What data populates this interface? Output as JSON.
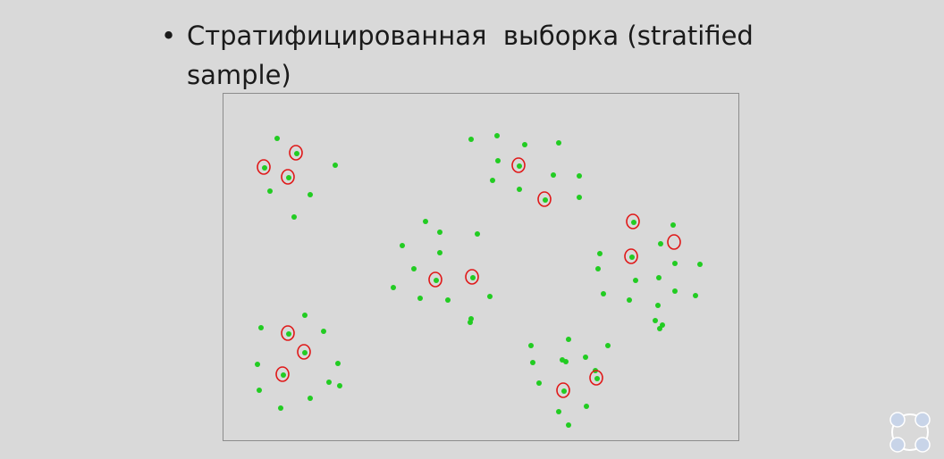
{
  "slide": {
    "bullet_symbol": "•",
    "bullet_text": "Стратифицированная  выборка (stratified\nsample)"
  },
  "colors": {
    "background": "#d9d9d9",
    "point": "#22cc22",
    "selection_circle": "#e01818",
    "frame_border": "#8c8c8c"
  },
  "chart_data": {
    "type": "scatter",
    "title": "",
    "xlabel": "",
    "ylabel": "",
    "grid": false,
    "xlim": [
      0,
      578
    ],
    "ylim": [
      0,
      390
    ],
    "series": [
      {
        "points": [
          [
            60,
            50
          ],
          [
            82,
            67
          ],
          [
            46,
            83
          ],
          [
            73,
            94
          ],
          [
            125,
            80
          ],
          [
            52,
            109
          ],
          [
            97,
            113
          ],
          [
            79,
            138
          ],
          [
            277,
            51
          ],
          [
            306,
            47
          ],
          [
            337,
            57
          ],
          [
            375,
            55
          ],
          [
            307,
            75
          ],
          [
            331,
            81
          ],
          [
            369,
            91
          ],
          [
            398,
            92
          ],
          [
            301,
            97
          ],
          [
            331,
            107
          ],
          [
            360,
            119
          ],
          [
            398,
            116
          ],
          [
            226,
            143
          ],
          [
            242,
            155
          ],
          [
            284,
            157
          ],
          [
            200,
            170
          ],
          [
            242,
            178
          ],
          [
            213,
            196
          ],
          [
            238,
            209
          ],
          [
            279,
            206
          ],
          [
            190,
            217
          ],
          [
            220,
            229
          ],
          [
            251,
            231
          ],
          [
            298,
            227
          ],
          [
            277,
            252
          ],
          [
            276,
            256
          ],
          [
            459,
            144
          ],
          [
            503,
            147
          ],
          [
            489,
            168
          ],
          [
            421,
            179
          ],
          [
            457,
            183
          ],
          [
            419,
            196
          ],
          [
            505,
            190
          ],
          [
            533,
            191
          ],
          [
            487,
            206
          ],
          [
            461,
            209
          ],
          [
            425,
            224
          ],
          [
            454,
            231
          ],
          [
            505,
            221
          ],
          [
            528,
            226
          ],
          [
            486,
            237
          ],
          [
            483,
            254
          ],
          [
            491,
            259
          ],
          [
            488,
            263
          ],
          [
            91,
            248
          ],
          [
            42,
            262
          ],
          [
            73,
            269
          ],
          [
            112,
            266
          ],
          [
            91,
            290
          ],
          [
            38,
            303
          ],
          [
            128,
            302
          ],
          [
            67,
            315
          ],
          [
            118,
            323
          ],
          [
            130,
            327
          ],
          [
            40,
            332
          ],
          [
            97,
            341
          ],
          [
            64,
            352
          ],
          [
            386,
            275
          ],
          [
            344,
            282
          ],
          [
            430,
            282
          ],
          [
            379,
            298
          ],
          [
            383,
            300
          ],
          [
            346,
            301
          ],
          [
            405,
            295
          ],
          [
            416,
            310
          ],
          [
            418,
            319
          ],
          [
            353,
            324
          ],
          [
            381,
            333
          ],
          [
            406,
            350
          ],
          [
            375,
            356
          ],
          [
            386,
            371
          ]
        ]
      }
    ],
    "selected": [
      [
        82,
        67
      ],
      [
        46,
        83
      ],
      [
        73,
        94
      ],
      [
        331,
        81
      ],
      [
        360,
        119
      ],
      [
        238,
        209
      ],
      [
        279,
        206
      ],
      [
        459,
        144
      ],
      [
        457,
        183
      ],
      [
        505,
        167
      ],
      [
        73,
        269
      ],
      [
        91,
        290
      ],
      [
        67,
        315
      ],
      [
        381,
        333
      ],
      [
        418,
        319
      ]
    ]
  }
}
